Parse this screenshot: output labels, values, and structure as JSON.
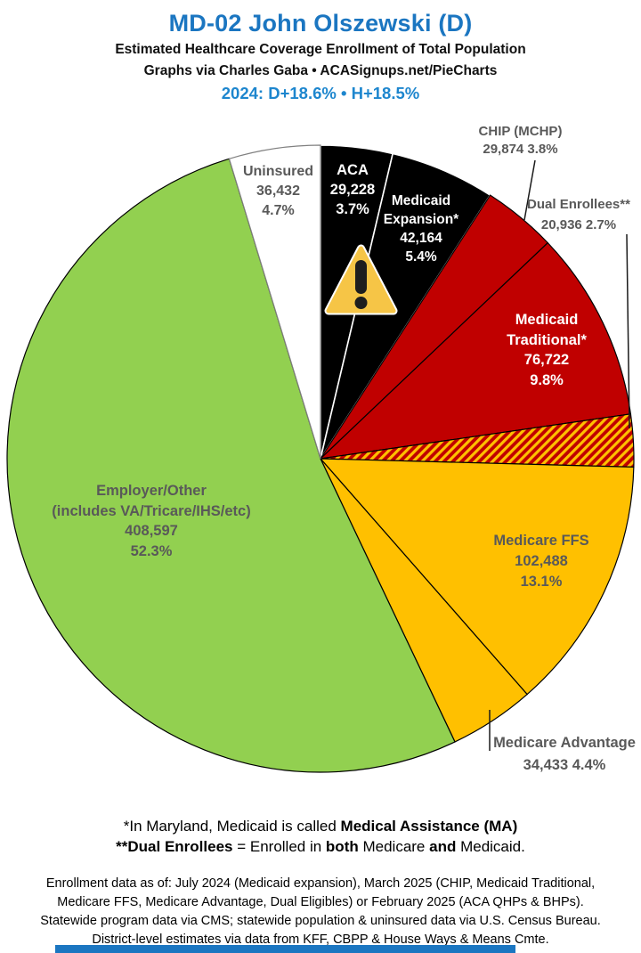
{
  "header": {
    "title": "MD-02 John Olszewski (D)",
    "subtitle1": "Estimated Healthcare Coverage Enrollment of Total Population",
    "subtitle2": "Graphs via Charles Gaba   •   ACASignups.net/PieCharts",
    "partisan_line": "2024: D+18.6%  •  H+18.5%",
    "title_color": "#1B76C1",
    "partisan_color": "#1D86CE"
  },
  "chart_data": {
    "type": "pie",
    "title": "MD-02 John Olszewski (D) — Estimated Healthcare Coverage Enrollment of Total Population",
    "legend_position": "labels on slices and external callouts",
    "start_angle": "12 o'clock, clockwise",
    "slices": [
      {
        "id": "aca",
        "label": "ACA",
        "value": 29228,
        "value_text": "29,228",
        "pct_text": "3.7%",
        "share": 3.7,
        "color": "#000000",
        "stroke": "#FFFFFF"
      },
      {
        "id": "medicaid-expansion",
        "label": "Medicaid",
        "label2": "Expansion*",
        "value": 42164,
        "value_text": "42,164",
        "pct_text": "5.4%",
        "share": 5.4,
        "color": "#000000",
        "stroke": "#FFFFFF"
      },
      {
        "id": "chip",
        "label": "CHIP (MCHP)",
        "value": 29874,
        "combo_text": "29,874 3.8%",
        "share": 3.8,
        "color": "#C00000",
        "stroke": "#000000"
      },
      {
        "id": "medicaid-traditional",
        "label": "Medicaid",
        "label2": "Traditional*",
        "value": 76722,
        "value_text": "76,722",
        "pct_text": "9.8%",
        "share": 9.8,
        "color": "#C00000",
        "stroke": "#000000"
      },
      {
        "id": "dual-enrollees",
        "label": "Dual Enrollees**",
        "value": 20936,
        "combo_text": "20,936 2.7%",
        "share": 2.7,
        "color": "hatch",
        "stroke": "#000000"
      },
      {
        "id": "medicare-ffs",
        "label": "Medicare FFS",
        "value": 102488,
        "value_text": "102,488",
        "pct_text": "13.1%",
        "share": 13.1,
        "color": "#FFC000",
        "stroke": "#000000"
      },
      {
        "id": "medicare-advantage",
        "label": "Medicare Advantage",
        "value": 34433,
        "combo_text": "34,433 4.4%",
        "share": 4.4,
        "color": "#FFC000",
        "stroke": "#000000"
      },
      {
        "id": "employer-other",
        "label": "Employer/Other",
        "label2": "(includes VA/Tricare/IHS/etc)",
        "value": 408597,
        "value_text": "408,597",
        "pct_text": "52.3%",
        "share": 52.3,
        "color": "#92D050",
        "stroke": "#000000"
      },
      {
        "id": "uninsured",
        "label": "Uninsured",
        "value": 36432,
        "value_text": "36,432",
        "pct_text": "4.7%",
        "share": 4.7,
        "color": "#FFFFFF",
        "stroke": "#808080"
      }
    ],
    "colors": {
      "black_slice": "#000000",
      "red_slice": "#C00000",
      "gold_slice": "#FFC000",
      "green_slice": "#92D050",
      "white_slice": "#FFFFFF",
      "hatch_slice": "red/gold diagonal stripes",
      "label_gray": "#595959"
    }
  },
  "icons": {
    "warning": "warning-triangle-icon"
  },
  "footnotes": {
    "line1_pre": "*In Maryland, Medicaid is called ",
    "line1_bold": "Medical Assistance (MA)",
    "line2_bold1": "**Dual Enrollees",
    "line2_mid1": " = Enrolled in ",
    "line2_bold2": "both",
    "line2_mid2": " Medicare ",
    "line2_bold3": "and",
    "line2_end": " Medicaid."
  },
  "disclaimer_lines": [
    "Enrollment data as of: July 2024 (Medicaid expansion), March 2025 (CHIP, Medicaid Traditional,",
    "Medicare FFS, Medicare Advantage, Dual Eligibles) or February 2025 (ACA QHPs & BHPs).",
    "Statewide program data via CMS; statewide population & uninsured data via U.S. Census Bureau.",
    "District-level estimates via data from KFF, CBPP & House Ways & Means Cmte."
  ]
}
